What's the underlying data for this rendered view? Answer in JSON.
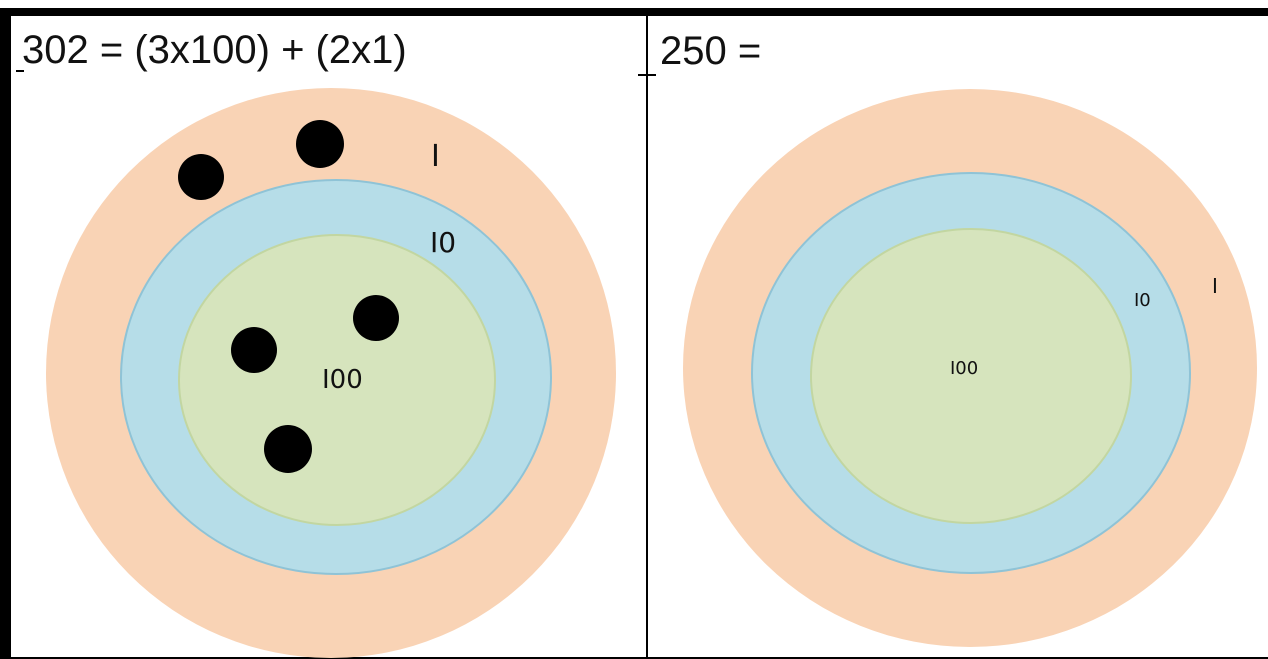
{
  "panels": [
    {
      "equation": "302 = (3x100) + (2x1)",
      "labels": {
        "ones": "I",
        "tens": "I0",
        "hundreds": "I00"
      },
      "counters": {
        "ones": 2,
        "tens": 0,
        "hundreds": 3
      }
    },
    {
      "equation": "250 =",
      "labels": {
        "ones": "I",
        "tens": "I0",
        "hundreds": "I00"
      },
      "counters": {
        "ones": 0,
        "tens": 0,
        "hundreds": 0
      }
    }
  ],
  "colors": {
    "ones_ring": "#f9d3b5",
    "tens_ring": "#b6dde8",
    "hundreds_ring": "#d6e4bd",
    "counter": "#000000"
  }
}
